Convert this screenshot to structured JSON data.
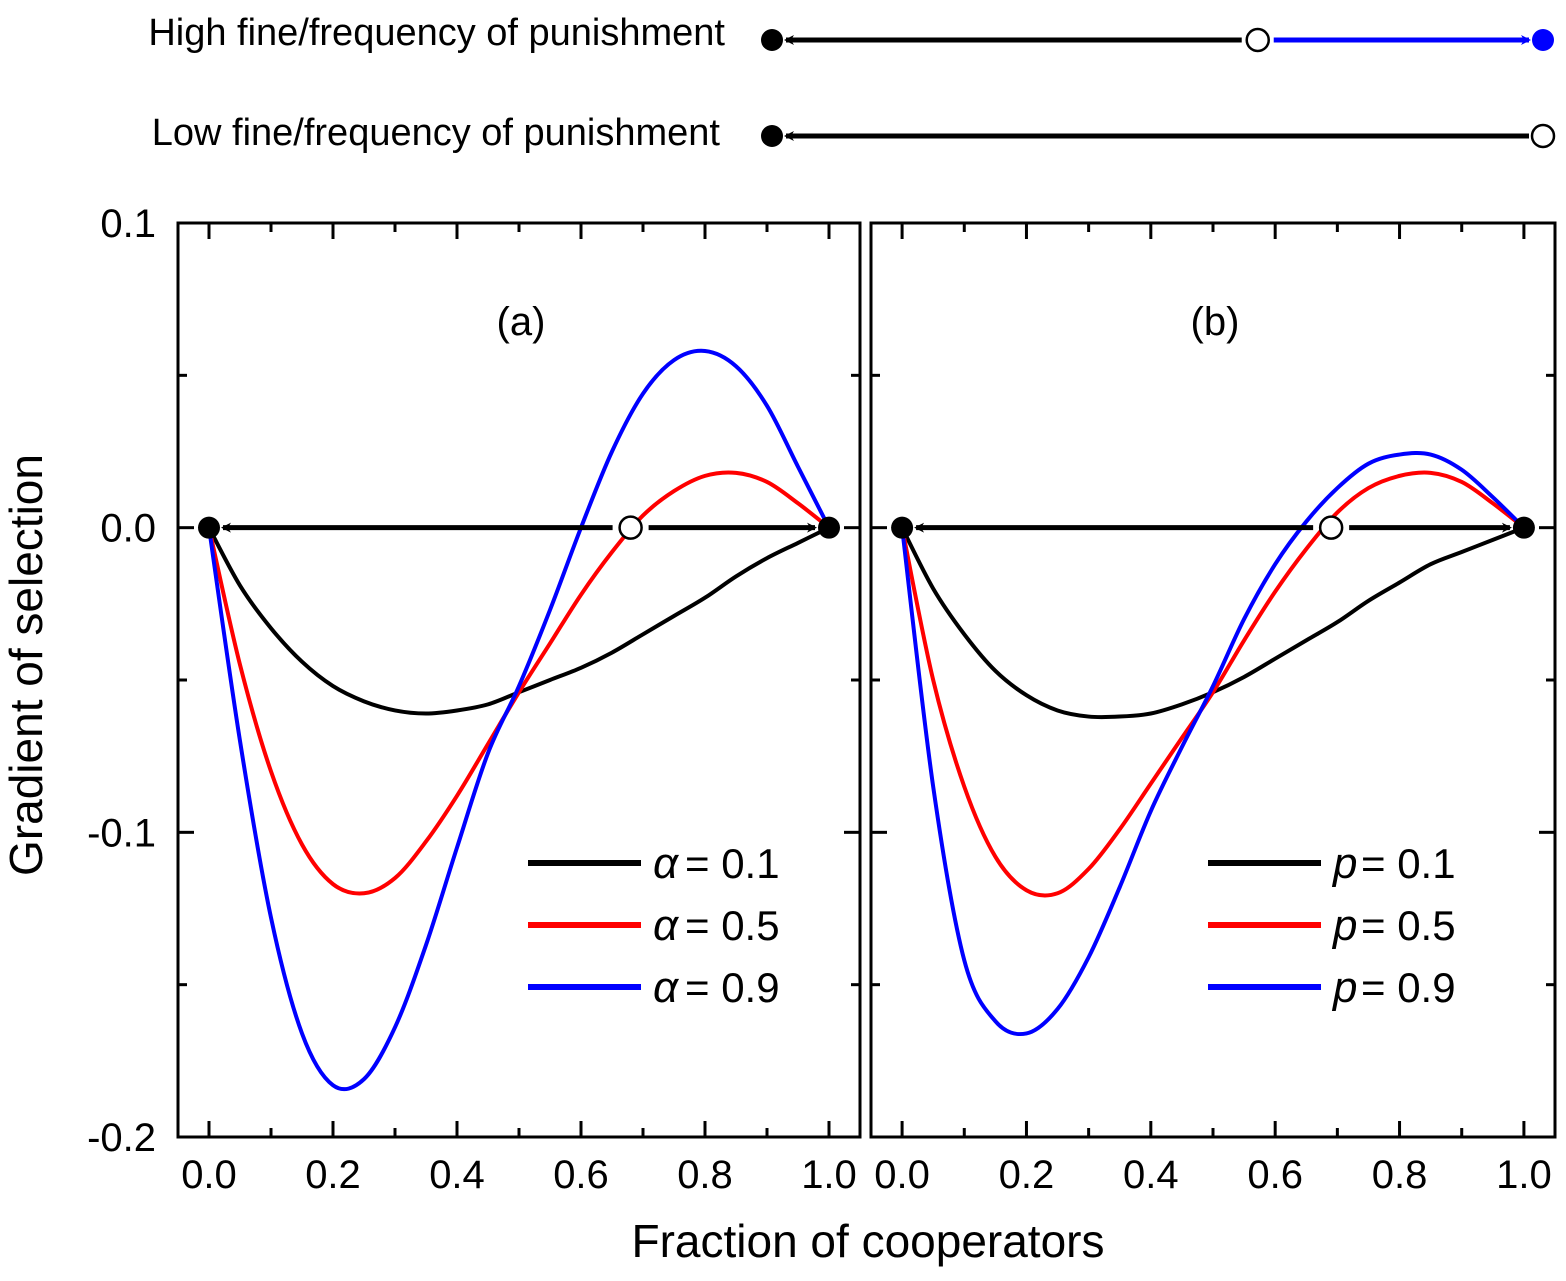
{
  "flow": {
    "high": {
      "label": "High fine/frequency of punishment",
      "stable": [
        0,
        1
      ],
      "unstable": 0.63
    },
    "low": {
      "label": "Low fine/frequency of punishment",
      "stable": [
        0
      ],
      "unstable": 1.0
    }
  },
  "chart_data": [
    {
      "type": "line",
      "panel_label": "(a)",
      "xlim": [
        -0.05,
        1.05
      ],
      "ylim": [
        -0.2,
        0.1
      ],
      "xticks": [
        "0.0",
        "0.2",
        "0.4",
        "0.6",
        "0.8",
        "1.0"
      ],
      "yticks": [
        "0.1",
        "0.0",
        "-0.1",
        "-0.2"
      ],
      "legend_symbol": "α",
      "series": [
        {
          "name": "α = 0.1",
          "value_label": "= 0.1",
          "color": "#000000",
          "x": [
            0,
            0.05,
            0.1,
            0.15,
            0.2,
            0.25,
            0.3,
            0.35,
            0.4,
            0.45,
            0.5,
            0.55,
            0.6,
            0.65,
            0.7,
            0.75,
            0.8,
            0.85,
            0.9,
            0.95,
            1.0
          ],
          "y": [
            0,
            -0.019,
            -0.033,
            -0.044,
            -0.052,
            -0.057,
            -0.06,
            -0.061,
            -0.06,
            -0.058,
            -0.054,
            -0.05,
            -0.046,
            -0.041,
            -0.035,
            -0.029,
            -0.023,
            -0.016,
            -0.01,
            -0.005,
            0
          ]
        },
        {
          "name": "α = 0.5",
          "value_label": "= 0.5",
          "color": "#ff0000",
          "x": [
            0,
            0.05,
            0.1,
            0.15,
            0.2,
            0.25,
            0.3,
            0.35,
            0.4,
            0.45,
            0.5,
            0.55,
            0.6,
            0.65,
            0.7,
            0.75,
            0.8,
            0.85,
            0.9,
            0.95,
            1.0
          ],
          "y": [
            0,
            -0.045,
            -0.08,
            -0.104,
            -0.117,
            -0.12,
            -0.115,
            -0.103,
            -0.088,
            -0.071,
            -0.054,
            -0.038,
            -0.022,
            -0.008,
            0.004,
            0.012,
            0.017,
            0.018,
            0.015,
            0.008,
            0
          ]
        },
        {
          "name": "α = 0.9",
          "value_label": "= 0.9",
          "color": "#0000ff",
          "x": [
            0,
            0.05,
            0.1,
            0.15,
            0.2,
            0.25,
            0.3,
            0.35,
            0.4,
            0.45,
            0.5,
            0.55,
            0.6,
            0.65,
            0.7,
            0.75,
            0.8,
            0.85,
            0.9,
            0.95,
            1.0
          ],
          "y": [
            0,
            -0.07,
            -0.128,
            -0.166,
            -0.183,
            -0.181,
            -0.164,
            -0.137,
            -0.105,
            -0.074,
            -0.052,
            -0.027,
            0.0,
            0.025,
            0.044,
            0.055,
            0.058,
            0.053,
            0.04,
            0.02,
            0
          ]
        }
      ],
      "fixed_points": {
        "stable": [
          0,
          1
        ],
        "unstable": 0.68
      }
    },
    {
      "type": "line",
      "panel_label": "(b)",
      "xlim": [
        -0.05,
        1.05
      ],
      "ylim": [
        -0.2,
        0.1
      ],
      "xticks": [
        "0.0",
        "0.2",
        "0.4",
        "0.6",
        "0.8",
        "1.0"
      ],
      "yticks": [
        "0.1",
        "0.0",
        "-0.1",
        "-0.2"
      ],
      "legend_symbol": "p",
      "series": [
        {
          "name": "p = 0.1",
          "value_label": "= 0.1",
          "color": "#000000",
          "x": [
            0,
            0.05,
            0.1,
            0.15,
            0.2,
            0.25,
            0.3,
            0.35,
            0.4,
            0.45,
            0.5,
            0.55,
            0.6,
            0.65,
            0.7,
            0.75,
            0.8,
            0.85,
            0.9,
            0.95,
            1.0
          ],
          "y": [
            0,
            -0.02,
            -0.035,
            -0.047,
            -0.055,
            -0.06,
            -0.062,
            -0.062,
            -0.061,
            -0.058,
            -0.054,
            -0.049,
            -0.043,
            -0.037,
            -0.031,
            -0.024,
            -0.018,
            -0.012,
            -0.008,
            -0.004,
            0
          ]
        },
        {
          "name": "p = 0.5",
          "value_label": "= 0.5",
          "color": "#ff0000",
          "x": [
            0,
            0.05,
            0.1,
            0.15,
            0.2,
            0.25,
            0.3,
            0.35,
            0.4,
            0.45,
            0.5,
            0.55,
            0.6,
            0.65,
            0.7,
            0.75,
            0.8,
            0.85,
            0.9,
            0.95,
            1.0
          ],
          "y": [
            0,
            -0.05,
            -0.085,
            -0.108,
            -0.119,
            -0.12,
            -0.112,
            -0.099,
            -0.084,
            -0.069,
            -0.054,
            -0.037,
            -0.021,
            -0.007,
            0.005,
            0.013,
            0.017,
            0.018,
            0.015,
            0.008,
            0
          ]
        },
        {
          "name": "p = 0.9",
          "value_label": "= 0.9",
          "color": "#0000ff",
          "x": [
            0,
            0.05,
            0.1,
            0.15,
            0.2,
            0.25,
            0.3,
            0.35,
            0.4,
            0.45,
            0.5,
            0.55,
            0.6,
            0.65,
            0.7,
            0.75,
            0.8,
            0.85,
            0.9,
            0.95,
            1.0
          ],
          "y": [
            0,
            -0.085,
            -0.142,
            -0.162,
            -0.166,
            -0.158,
            -0.141,
            -0.118,
            -0.093,
            -0.072,
            -0.052,
            -0.03,
            -0.012,
            0.002,
            0.013,
            0.021,
            0.024,
            0.024,
            0.019,
            0.01,
            0
          ]
        }
      ],
      "fixed_points": {
        "stable": [
          0,
          1
        ],
        "unstable": 0.69
      }
    }
  ],
  "axes": {
    "ylabel": "Gradient of selection",
    "xlabel": "Fraction of cooperators"
  }
}
